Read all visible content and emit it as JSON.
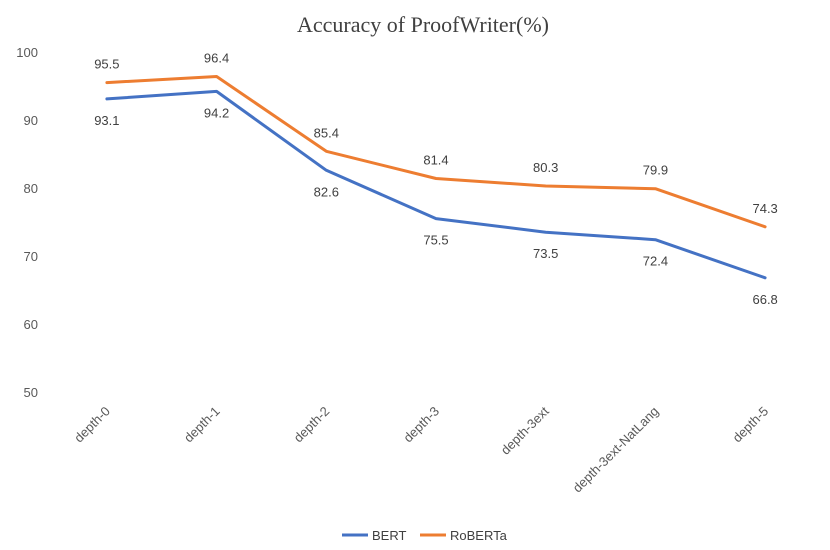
{
  "chart_data": {
    "type": "line",
    "title": "Accuracy of ProofWriter(%)",
    "xlabel": "",
    "ylabel": "",
    "categories": [
      "depth-0",
      "depth-1",
      "depth-2",
      "depth-3",
      "depth-3ext",
      "depth-3ext-NatLang",
      "depth-5"
    ],
    "ylim": [
      50,
      100
    ],
    "yticks": [
      "50",
      "60",
      "70",
      "80",
      "90",
      "100"
    ],
    "grid": false,
    "legend": "bottom",
    "series": [
      {
        "name": "BERT",
        "color": "#4472C4",
        "values": [
          93.1,
          94.2,
          82.6,
          75.5,
          73.5,
          72.4,
          66.8
        ],
        "labels": [
          "93.1",
          "94.2",
          "82.6",
          "75.5",
          "73.5",
          "72.4",
          "66.8"
        ]
      },
      {
        "name": "RoBERTa",
        "color": "#ED7D31",
        "values": [
          95.5,
          96.4,
          85.4,
          81.4,
          80.3,
          79.9,
          74.3
        ],
        "labels": [
          "95.5",
          "96.4",
          "85.4",
          "81.4",
          "80.3",
          "79.9",
          "74.3"
        ]
      }
    ]
  }
}
